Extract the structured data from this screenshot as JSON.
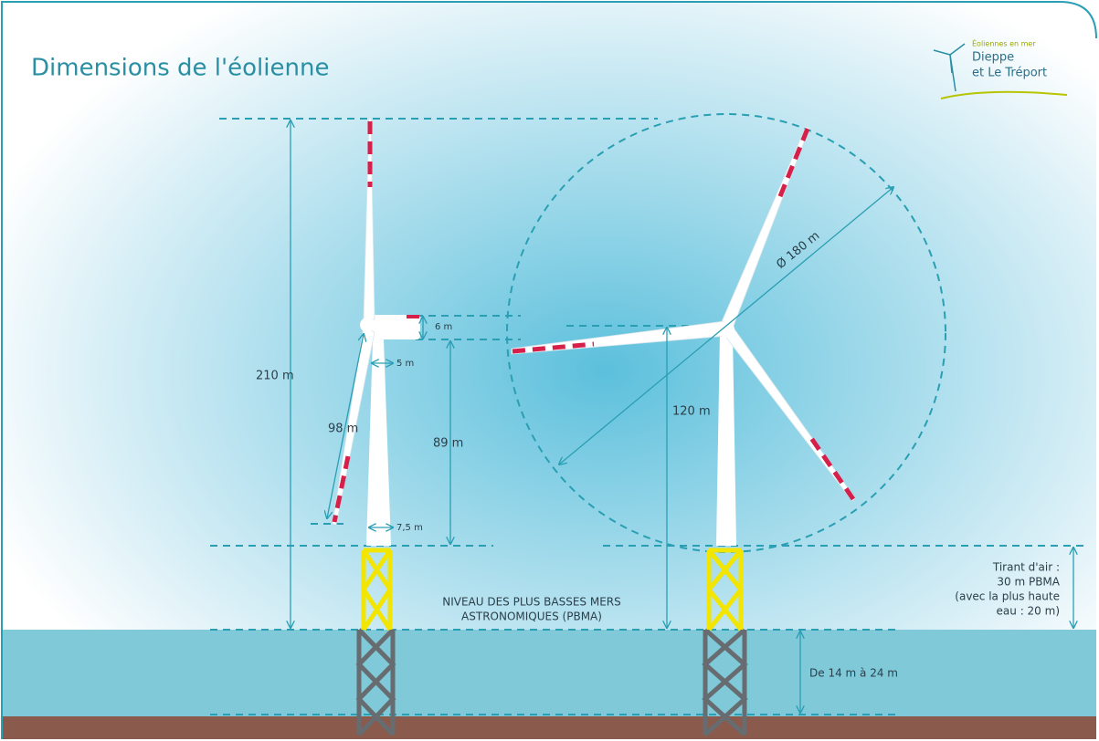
{
  "header": {
    "title": "Dimensions de l'éolienne"
  },
  "logo": {
    "lines": [
      "Éoliennes en mer",
      "Dieppe",
      "et Le Tréport"
    ]
  },
  "labels": {
    "total_height": "210 m",
    "nacelle_height": "6 m",
    "nacelle_width": "5 m",
    "blade_length": "98 m",
    "tower_height": "89 m",
    "tower_base": "7,5 m",
    "rotor_diameter": "Ø 180 m",
    "hub_height": "120 m",
    "pbma": [
      "NIVEAU DES PLUS BASSES MERS",
      "ASTRONOMIQUES (PBMA)"
    ],
    "air_draft": [
      "Tirant d'air :",
      "30 m PBMA",
      "(avec la plus haute",
      "eau : 20 m)"
    ],
    "water_depth": "De 14 m à 24 m"
  }
}
